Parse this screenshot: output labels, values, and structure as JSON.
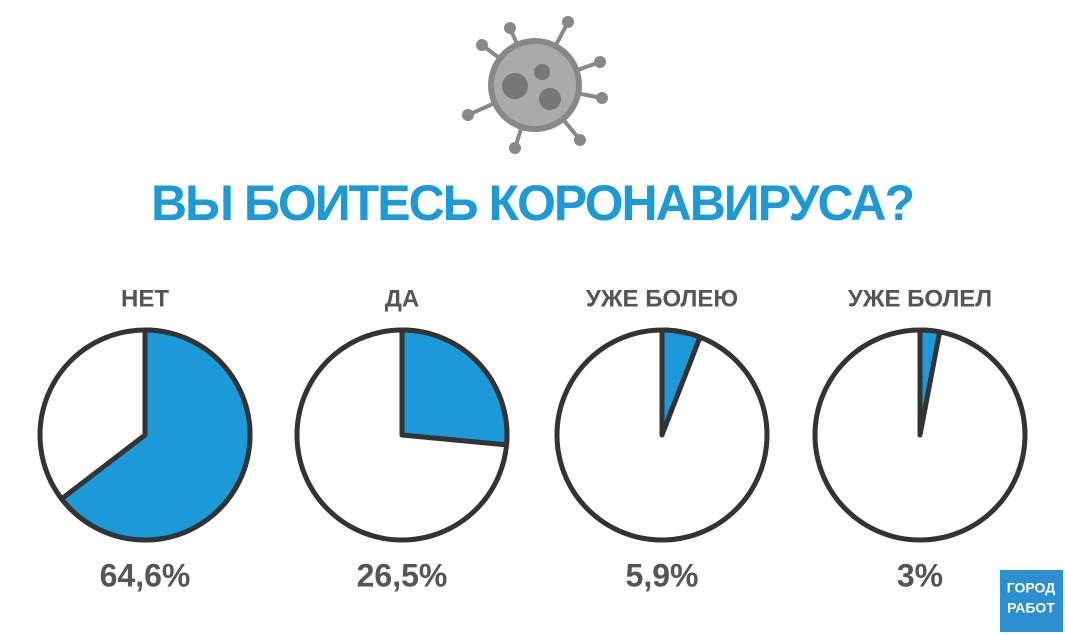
{
  "title": "ВЫ БОИТЕСЬ КОРОНАВИРУСА?",
  "logo": [
    "ГОРОД",
    "РАБОТ"
  ],
  "chart_data": [
    {
      "type": "pie",
      "title": "НЕТ",
      "values": [
        64.6
      ],
      "value_labels": [
        "64,6%"
      ],
      "color": "#1b9ad7"
    },
    {
      "type": "pie",
      "title": "ДА",
      "values": [
        26.5
      ],
      "value_labels": [
        "26,5%"
      ],
      "color": "#1b9ad7"
    },
    {
      "type": "pie",
      "title": "УЖЕ БОЛЕЮ",
      "values": [
        5.9
      ],
      "value_labels": [
        "5,9%"
      ],
      "color": "#1b9ad7"
    },
    {
      "type": "pie",
      "title": "УЖЕ БОЛЕЛ",
      "values": [
        3
      ],
      "value_labels": [
        "3%"
      ],
      "color": "#1b9ad7"
    }
  ]
}
